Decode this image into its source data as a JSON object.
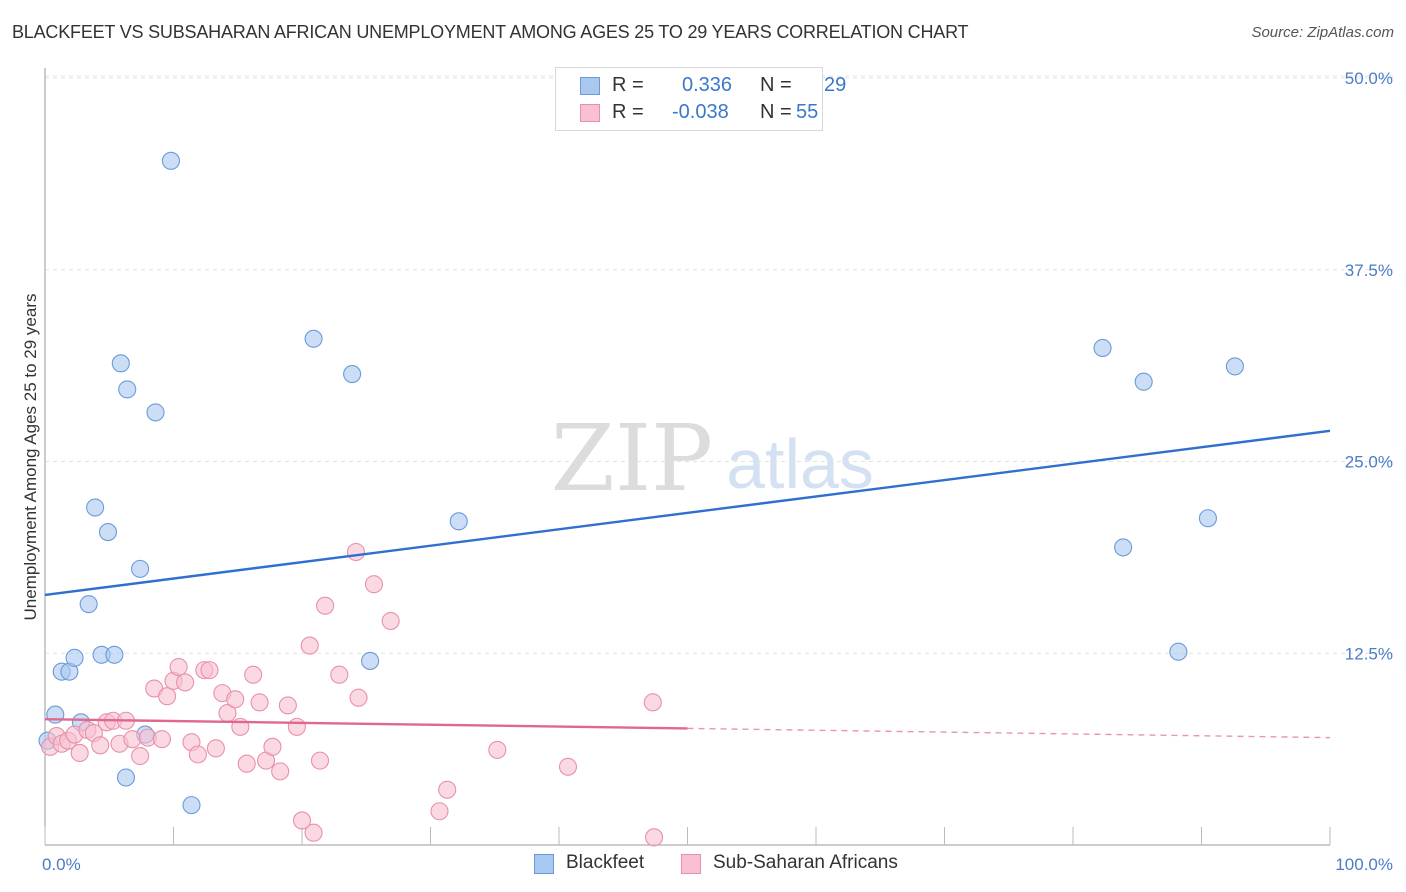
{
  "title": "BLACKFEET VS SUBSAHARAN AFRICAN UNEMPLOYMENT AMONG AGES 25 TO 29 YEARS CORRELATION CHART",
  "source": "Source: ZipAtlas.com",
  "watermark": {
    "zip": "ZIP",
    "atlas": "atlas"
  },
  "legend_top": [
    {
      "r_label": "R =",
      "r_value": "0.336",
      "n_label": "N =",
      "n_value": "29",
      "color": "#a8c8f0",
      "border": "#6a9bd8"
    },
    {
      "r_label": "R =",
      "r_value": "-0.038",
      "n_label": "N =",
      "n_value": "55",
      "color": "#f8c0d0",
      "border": "#e890aa"
    }
  ],
  "legend_bottom": [
    {
      "label": "Blackfeet",
      "color": "#a8c8f0",
      "border": "#6a9bd8"
    },
    {
      "label": "Sub-Saharan Africans",
      "color": "#f8c0d0",
      "border": "#e890aa"
    }
  ],
  "chart_data": {
    "type": "scatter",
    "title": "BLACKFEET VS SUBSAHARAN AFRICAN UNEMPLOYMENT AMONG AGES 25 TO 29 YEARS CORRELATION CHART",
    "xlabel": "",
    "ylabel": "Unemployment Among Ages 25 to 29 years",
    "xlim": [
      0,
      100
    ],
    "ylim": [
      0,
      50
    ],
    "x_tick_labels": [
      {
        "value": 0,
        "label": "0.0%"
      },
      {
        "value": 100,
        "label": "100.0%"
      }
    ],
    "y_tick_labels": [
      {
        "value": 12.5,
        "label": "12.5%"
      },
      {
        "value": 25.0,
        "label": "25.0%"
      },
      {
        "value": 37.5,
        "label": "37.5%"
      },
      {
        "value": 50.0,
        "label": "50.0%"
      }
    ],
    "grid": true,
    "legend": "bottom",
    "series": [
      {
        "name": "Blackfeet",
        "color": "#a8c8f0",
        "stroke": "#6a9bd8",
        "line_color": "#2f6fce",
        "trend": {
          "x0": 0,
          "y0": 16.3,
          "x1": 100,
          "y1": 27.0,
          "solid_to": 100
        },
        "points": [
          [
            0.2,
            6.8
          ],
          [
            0.8,
            8.5
          ],
          [
            1.3,
            11.3
          ],
          [
            1.9,
            11.3
          ],
          [
            2.3,
            12.2
          ],
          [
            2.8,
            8.0
          ],
          [
            3.4,
            15.7
          ],
          [
            3.9,
            22.0
          ],
          [
            4.4,
            12.4
          ],
          [
            4.9,
            20.4
          ],
          [
            5.4,
            12.4
          ],
          [
            5.9,
            31.4
          ],
          [
            6.4,
            29.7
          ],
          [
            7.4,
            18.0
          ],
          [
            7.8,
            7.2
          ],
          [
            6.3,
            4.4
          ],
          [
            8.6,
            28.2
          ],
          [
            9.8,
            44.6
          ],
          [
            11.4,
            2.6
          ],
          [
            20.9,
            33.0
          ],
          [
            23.9,
            30.7
          ],
          [
            25.3,
            12.0
          ],
          [
            32.2,
            21.1
          ],
          [
            82.3,
            32.4
          ],
          [
            85.5,
            30.2
          ],
          [
            83.9,
            19.4
          ],
          [
            88.2,
            12.6
          ],
          [
            90.5,
            21.3
          ],
          [
            92.6,
            31.2
          ]
        ]
      },
      {
        "name": "Sub-Saharan Africans",
        "color": "#f8c0d0",
        "stroke": "#e890aa",
        "line_color": "#e06890",
        "trend": {
          "x0": 0,
          "y0": 8.2,
          "x1": 100,
          "y1": 7.0,
          "solid_to": 50
        },
        "points": [
          [
            0.4,
            6.4
          ],
          [
            0.9,
            7.1
          ],
          [
            1.3,
            6.6
          ],
          [
            1.8,
            6.8
          ],
          [
            2.3,
            7.2
          ],
          [
            2.7,
            6.0
          ],
          [
            3.3,
            7.5
          ],
          [
            3.8,
            7.3
          ],
          [
            4.3,
            6.5
          ],
          [
            4.8,
            8.0
          ],
          [
            5.3,
            8.1
          ],
          [
            5.8,
            6.6
          ],
          [
            6.3,
            8.1
          ],
          [
            6.8,
            6.9
          ],
          [
            7.4,
            5.8
          ],
          [
            8.0,
            7.0
          ],
          [
            8.5,
            10.2
          ],
          [
            9.1,
            6.9
          ],
          [
            9.5,
            9.7
          ],
          [
            10.0,
            10.7
          ],
          [
            10.4,
            11.6
          ],
          [
            10.9,
            10.6
          ],
          [
            11.4,
            6.7
          ],
          [
            11.9,
            5.9
          ],
          [
            12.4,
            11.4
          ],
          [
            12.8,
            11.4
          ],
          [
            13.3,
            6.3
          ],
          [
            13.8,
            9.9
          ],
          [
            14.2,
            8.6
          ],
          [
            14.8,
            9.5
          ],
          [
            15.2,
            7.7
          ],
          [
            15.7,
            5.3
          ],
          [
            16.2,
            11.1
          ],
          [
            16.7,
            9.3
          ],
          [
            17.2,
            5.5
          ],
          [
            17.7,
            6.4
          ],
          [
            18.3,
            4.8
          ],
          [
            18.9,
            9.1
          ],
          [
            19.6,
            7.7
          ],
          [
            20.0,
            1.6
          ],
          [
            20.6,
            13.0
          ],
          [
            20.9,
            0.8
          ],
          [
            21.4,
            5.5
          ],
          [
            21.8,
            15.6
          ],
          [
            22.9,
            11.1
          ],
          [
            24.4,
            9.6
          ],
          [
            24.2,
            19.1
          ],
          [
            25.6,
            17.0
          ],
          [
            26.9,
            14.6
          ],
          [
            30.7,
            2.2
          ],
          [
            31.3,
            3.6
          ],
          [
            35.2,
            6.2
          ],
          [
            40.7,
            5.1
          ],
          [
            47.4,
            0.5
          ],
          [
            47.3,
            9.3
          ]
        ]
      }
    ]
  }
}
